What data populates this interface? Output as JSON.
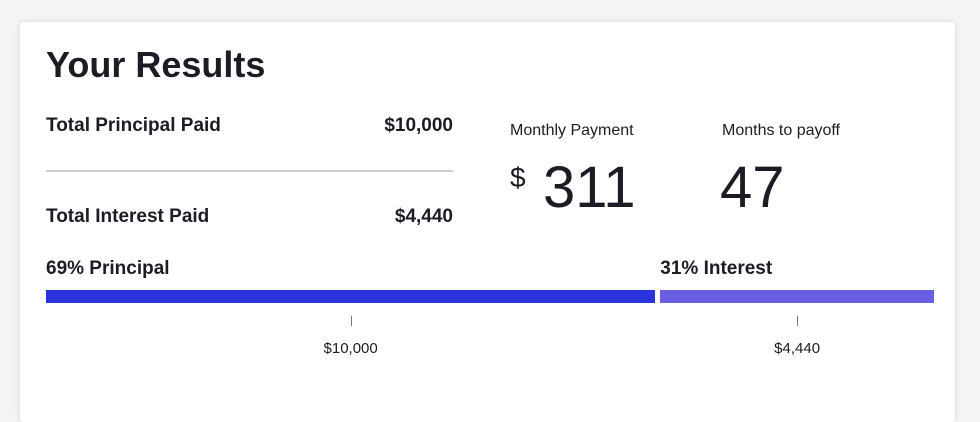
{
  "title": "Your Results",
  "summary": [
    {
      "label": "Total Principal Paid",
      "value": "$10,000"
    },
    {
      "label": "Total Interest Paid",
      "value": "$4,440"
    }
  ],
  "metrics": [
    {
      "label": "Monthly Payment",
      "currency": "$",
      "value": "311"
    },
    {
      "label": "Months to payoff",
      "value": "47"
    }
  ],
  "breakdown": [
    {
      "label": "69% Principal",
      "percent": 69,
      "amount": "$10,000",
      "color": "#2b33dc"
    },
    {
      "label": "31% Interest",
      "percent": 31,
      "amount": "$4,440",
      "color": "#6a5fe3"
    }
  ]
}
